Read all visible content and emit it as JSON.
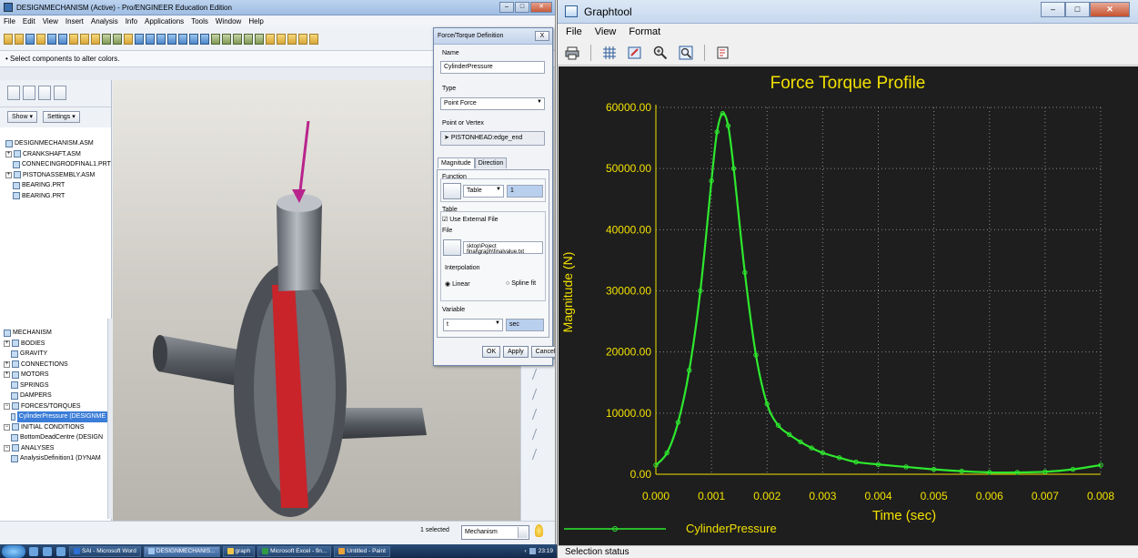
{
  "proe": {
    "title": "DESIGNMECHANISM (Active) - Pro/ENGINEER Education Edition",
    "menu": [
      "File",
      "Edit",
      "View",
      "Insert",
      "Analysis",
      "Info",
      "Applications",
      "Tools",
      "Window",
      "Help"
    ],
    "message": "• Select components to alter colors.",
    "nav": {
      "show_label": "Show ▾",
      "settings_label": "Settings ▾"
    },
    "model_tree": [
      "DESIGNMECHANISM.ASM",
      "CRANKSHAFT.ASM",
      "CONNECINGRODFINAL1.PRT",
      "PISTONASSEMBLY.ASM",
      "BEARING.PRT",
      "BEARING.PRT"
    ],
    "mech_tree": [
      "MECHANISM",
      "BODIES",
      "GRAVITY",
      "CONNECTIONS",
      "MOTORS",
      "SPRINGS",
      "DAMPERS",
      "FORCES/TORQUES",
      "CylinderPressure (DESIGNME",
      "INITIAL CONDITIONS",
      "BottomDeadCentre (DESIGN",
      "ANALYSES",
      "AnalysisDefinition1 (DYNAM"
    ],
    "status": {
      "selected": "1 selected",
      "filter": "Mechanism"
    }
  },
  "dialog": {
    "title": "Force/Torque Definition",
    "close": "X",
    "name_label": "Name",
    "name_value": "CylinderPressure",
    "type_label": "Type",
    "type_value": "Point Force",
    "point_label": "Point or Vertex",
    "point_value": "PISTONHEAD:edge_end",
    "tabs": [
      "Magnitude",
      "Direction"
    ],
    "function_label": "Function",
    "function_value": "Table",
    "function_extra": "1",
    "table_label": "Table",
    "use_external": "Use External File",
    "file_label": "File",
    "file_value": "sktop\\Poject final\\graph\\finalvalue.txt",
    "interp_label": "Interpolation",
    "interp_linear": "Linear",
    "interp_spline": "Spline fit",
    "variable_label": "Variable",
    "variable_value": "t",
    "variable_unit": "sec",
    "ok": "OK",
    "apply": "Apply",
    "cancel": "Cancel"
  },
  "graphtool": {
    "title": "Graphtool",
    "menu": [
      "File",
      "View",
      "Format"
    ],
    "status": "Selection status"
  },
  "taskbar": {
    "items": [
      "SAI - Microsoft Word",
      "DESIGNMECHANIS...",
      "graph",
      "Microsoft Excel - fin...",
      "Untitled - Paint"
    ],
    "clock": "23:19"
  },
  "chart_data": {
    "type": "line",
    "title": "Force Torque Profile",
    "xlabel": "Time (sec)",
    "ylabel": "Magnitude (N)",
    "xlim": [
      0,
      0.008
    ],
    "ylim": [
      0,
      60000
    ],
    "xticks": [
      "0.000",
      "0.001",
      "0.002",
      "0.003",
      "0.004",
      "0.005",
      "0.006",
      "0.007",
      "0.008"
    ],
    "yticks": [
      "0.00",
      "10000.00",
      "20000.00",
      "30000.00",
      "40000.00",
      "50000.00",
      "60000.00"
    ],
    "grid": true,
    "legend_position": "bottom-left",
    "series": [
      {
        "name": "CylinderPressure",
        "color": "#2ee82e",
        "x": [
          0,
          0.0002,
          0.0004,
          0.0006,
          0.0008,
          0.001,
          0.0011,
          0.0012,
          0.0013,
          0.0014,
          0.0016,
          0.0018,
          0.002,
          0.0022,
          0.0024,
          0.0026,
          0.0028,
          0.003,
          0.0033,
          0.0036,
          0.004,
          0.0045,
          0.005,
          0.0055,
          0.006,
          0.0065,
          0.007,
          0.0075,
          0.008
        ],
        "y": [
          1500,
          3500,
          8500,
          17000,
          30000,
          48000,
          56000,
          59000,
          57000,
          50000,
          33000,
          19500,
          11500,
          8000,
          6500,
          5300,
          4300,
          3500,
          2700,
          2000,
          1600,
          1200,
          800,
          500,
          300,
          300,
          400,
          800,
          1500
        ]
      }
    ]
  }
}
